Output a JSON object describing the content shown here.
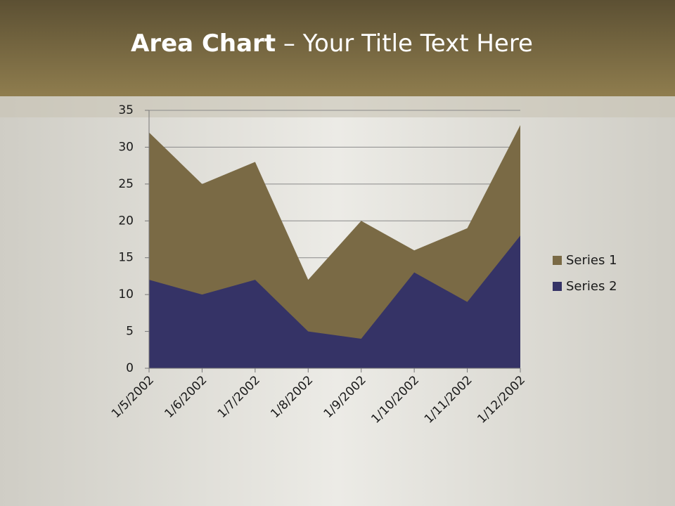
{
  "chart_data": {
    "type": "area",
    "title": {
      "bold": "Area Chart",
      "rest": "– Your Title Text Here"
    },
    "categories": [
      "1/5/2002",
      "1/6/2002",
      "1/7/2002",
      "1/8/2002",
      "1/9/2002",
      "1/10/2002",
      "1/11/2002",
      "1/12/2002"
    ],
    "series": [
      {
        "name": "Series 1",
        "color": "#7a6a45",
        "values": [
          32,
          25,
          28,
          12,
          20,
          16,
          19,
          33
        ]
      },
      {
        "name": "Series 2",
        "color": "#353366",
        "values": [
          12,
          10,
          12,
          5,
          4,
          13,
          9,
          18
        ]
      }
    ],
    "ylim": [
      0,
      35
    ],
    "yticks": [
      0,
      5,
      10,
      15,
      20,
      25,
      30,
      35
    ],
    "grid": true,
    "legend": "right"
  }
}
